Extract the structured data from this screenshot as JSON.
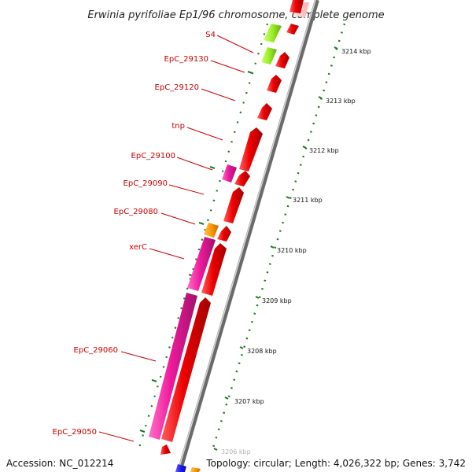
{
  "title": "Erwinia pyrifoliae Ep1/96 chromosome, complete genome",
  "accession_text": "Accession: NC_012214",
  "topology_text": "Topology: circular; Length: 4,026,322 bp; Genes: 3,742",
  "gene_labels": [
    "S4",
    "EpC_29130",
    "EpC_29120",
    "tnp",
    "EpC_29100",
    "EpC_29090",
    "EpC_29080",
    "xerC",
    "EpC_29060",
    "EpC_29050"
  ],
  "kbp_ticks": [
    "3214 kbp",
    "3213 kbp",
    "3212 kbp",
    "3211 kbp",
    "3210 kbp",
    "3209 kbp",
    "3208 kbp",
    "3207 kbp",
    "3206 kbp"
  ],
  "colors": {
    "gene_red": "#ee0000",
    "gene_pink": "#ee1a9c",
    "gene_orange": "#ff9900",
    "gene_lime": "#99ee22",
    "gene_blue": "#1a1aee",
    "backbone": "#888888",
    "tick_green": "#1a7a1a",
    "label_red": "#cc0000"
  }
}
